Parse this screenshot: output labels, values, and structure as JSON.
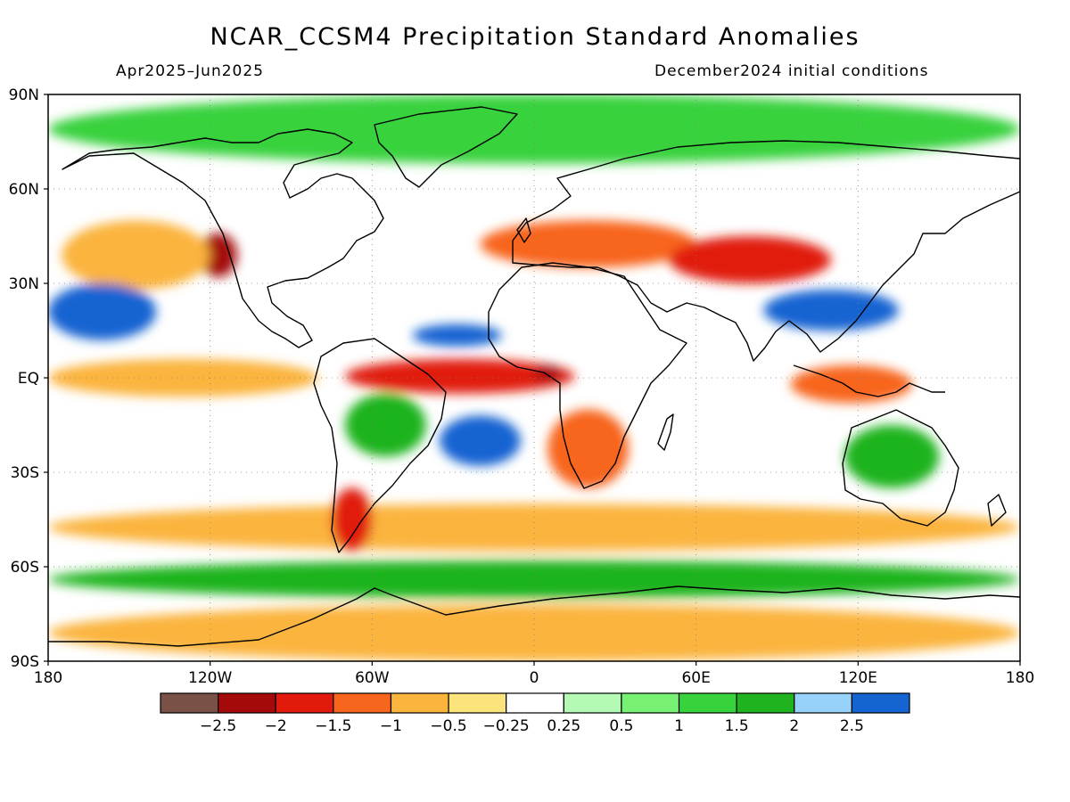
{
  "title": "NCAR_CCSM4 Precipitation Standard Anomalies",
  "period": "Apr2025–Jun2025",
  "initial_conditions": "December2024 initial conditions",
  "map": {
    "projection": "cylindrical equidistant",
    "lon_range": [
      -180,
      180
    ],
    "lat_range": [
      -90,
      90
    ],
    "lat_ticks": [
      {
        "value": 90,
        "label": "90N"
      },
      {
        "value": 60,
        "label": "60N"
      },
      {
        "value": 30,
        "label": "30N"
      },
      {
        "value": 0,
        "label": "EQ"
      },
      {
        "value": -30,
        "label": "30S"
      },
      {
        "value": -60,
        "label": "60S"
      },
      {
        "value": -90,
        "label": "90S"
      }
    ],
    "lon_ticks": [
      {
        "value": -180,
        "label": "180"
      },
      {
        "value": -120,
        "label": "120W"
      },
      {
        "value": -60,
        "label": "60W"
      },
      {
        "value": 0,
        "label": "0"
      },
      {
        "value": 60,
        "label": "60E"
      },
      {
        "value": 120,
        "label": "120E"
      },
      {
        "value": 180,
        "label": "180"
      }
    ]
  },
  "colorbar": {
    "colors": [
      "#7a5147",
      "#a40a0a",
      "#e11a0c",
      "#f8651c",
      "#fbb43c",
      "#fbe47c",
      "#ffffff",
      "#b4fab4",
      "#78f074",
      "#37d23c",
      "#1fb41f",
      "#96d2fa",
      "#1464d2"
    ],
    "labels": [
      "−2.5",
      "−2",
      "−1.5",
      "−1",
      "−0.5",
      "−0.25",
      "0.25",
      "0.5",
      "1",
      "1.5",
      "2",
      "2.5"
    ]
  },
  "anomaly_regions": [
    {
      "name": "equatorial-pacific-dry",
      "level": -1,
      "lon": [
        -180,
        -80
      ],
      "lat": [
        -6,
        6
      ]
    },
    {
      "name": "western-us-dry",
      "level": -2.5,
      "lon": [
        -124,
        -110
      ],
      "lat": [
        32,
        46
      ]
    },
    {
      "name": "northeast-pacific-dry",
      "level": -1,
      "lon": [
        -175,
        -120
      ],
      "lat": [
        28,
        50
      ]
    },
    {
      "name": "central-pacific-wet",
      "level": 2.5,
      "lon": [
        -180,
        -140
      ],
      "lat": [
        12,
        30
      ]
    },
    {
      "name": "equatorial-atlantic-dry",
      "level": -2,
      "lon": [
        -70,
        15
      ],
      "lat": [
        -5,
        6
      ]
    },
    {
      "name": "gulf-of-guinea-dry",
      "level": -2.5,
      "lon": [
        0,
        10
      ],
      "lat": [
        -1,
        4
      ]
    },
    {
      "name": "tropical-north-atlantic-wet",
      "level": 2.5,
      "lon": [
        -45,
        -12
      ],
      "lat": [
        10,
        17
      ]
    },
    {
      "name": "south-atlantic-wet",
      "level": 2.5,
      "lon": [
        -35,
        -5
      ],
      "lat": [
        -28,
        -12
      ]
    },
    {
      "name": "amazon-wet",
      "level": 1.5,
      "lon": [
        -70,
        -40
      ],
      "lat": [
        -25,
        -5
      ]
    },
    {
      "name": "southern-africa-dry",
      "level": -1.5,
      "lon": [
        5,
        35
      ],
      "lat": [
        -35,
        -10
      ]
    },
    {
      "name": "europe-dry",
      "level": -1.5,
      "lon": [
        -20,
        60
      ],
      "lat": [
        35,
        50
      ]
    },
    {
      "name": "central-asia-dry",
      "level": -2,
      "lon": [
        50,
        110
      ],
      "lat": [
        30,
        45
      ]
    },
    {
      "name": "south-asia-wet",
      "level": 2.5,
      "lon": [
        85,
        135
      ],
      "lat": [
        15,
        28
      ]
    },
    {
      "name": "maritime-continent-dry",
      "level": -1.5,
      "lon": [
        95,
        140
      ],
      "lat": [
        -8,
        4
      ]
    },
    {
      "name": "australia-wet",
      "level": 1.5,
      "lon": [
        115,
        150
      ],
      "lat": [
        -35,
        -15
      ]
    },
    {
      "name": "southern-ocean-dry",
      "level": -1,
      "lon": [
        -180,
        180
      ],
      "lat": [
        -55,
        -40
      ]
    },
    {
      "name": "patagonia-dry",
      "level": -2,
      "lon": [
        -75,
        -60
      ],
      "lat": [
        -55,
        -35
      ]
    },
    {
      "name": "antarctic-ring-wet",
      "level": 1.5,
      "lon": [
        -180,
        180
      ],
      "lat": [
        -70,
        -58
      ]
    },
    {
      "name": "antarctica-dry",
      "level": -1,
      "lon": [
        -180,
        180
      ],
      "lat": [
        -90,
        -72
      ]
    },
    {
      "name": "arctic-wet",
      "level": 1,
      "lon": [
        -180,
        180
      ],
      "lat": [
        68,
        90
      ]
    }
  ]
}
